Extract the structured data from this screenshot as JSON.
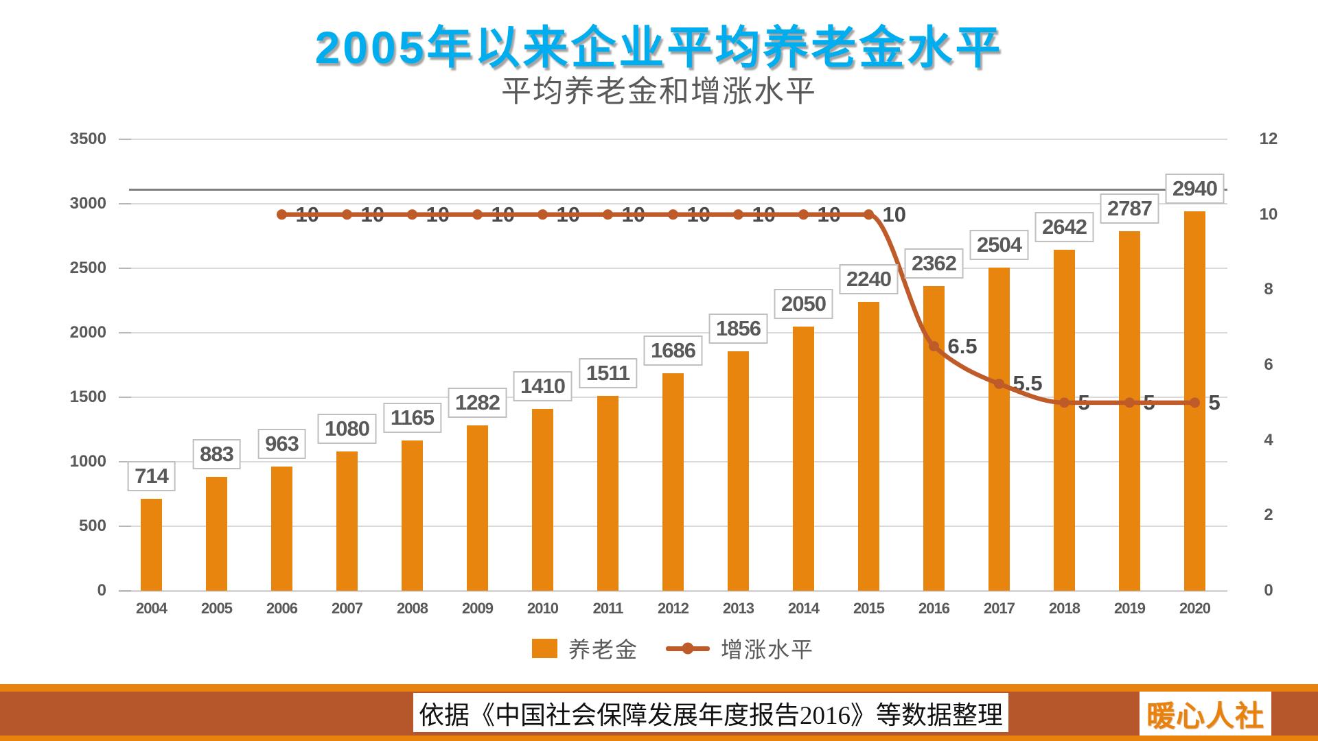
{
  "title": "2005年以来企业平均养老金水平",
  "subtitle": "平均养老金和增涨水平",
  "chart_data": {
    "type": "combo bar+line",
    "categories": [
      "2004",
      "2005",
      "2006",
      "2007",
      "2008",
      "2009",
      "2010",
      "2011",
      "2012",
      "2013",
      "2014",
      "2015",
      "2016",
      "2017",
      "2018",
      "2019",
      "2020"
    ],
    "series": [
      {
        "name": "养老金",
        "type": "bar",
        "axis": "left",
        "color": "#E8850E",
        "values": [
          714,
          883,
          963,
          1080,
          1165,
          1282,
          1410,
          1511,
          1686,
          1856,
          2050,
          2240,
          2362,
          2504,
          2642,
          2787,
          2940
        ],
        "data_labels": [
          "714",
          "883",
          "963",
          "1080",
          "1165",
          "1282",
          "1410",
          "1511",
          "1686",
          "1856",
          "2050",
          "2240",
          "2362",
          "2504",
          "2642",
          "2787",
          "2940"
        ]
      },
      {
        "name": "增涨水平",
        "type": "line",
        "smooth": true,
        "axis": "right",
        "color": "#BF5B28",
        "values": [
          null,
          null,
          10,
          10,
          10,
          10,
          10,
          10,
          10,
          10,
          10,
          10,
          6.5,
          5.5,
          5,
          5,
          5
        ],
        "data_labels": [
          null,
          null,
          "10",
          "10",
          "10",
          "10",
          "10",
          "10",
          "10",
          "10",
          "10",
          "10",
          "6.5",
          "5.5",
          "5",
          "5",
          "5"
        ]
      }
    ],
    "left_axis": {
      "min": 0,
      "max": 3500,
      "step": 500,
      "tick_labels": [
        "0",
        "500",
        "1000",
        "1500",
        "2000",
        "2500",
        "3000",
        "3500"
      ]
    },
    "right_axis": {
      "min": 0,
      "max": 12,
      "step": 2,
      "tick_labels": [
        "0",
        "2",
        "4",
        "6",
        "8",
        "10",
        "12"
      ]
    },
    "grid": "horizontal only",
    "reference_line": {
      "approx_value_left_axis": 3110,
      "color": "#7F7F7F"
    },
    "legend_position": "bottom"
  },
  "legend": {
    "bar_label": "养老金",
    "line_label": "增涨水平"
  },
  "footer": {
    "source_text": "依据《中国社会保障发展年度报告2016》等数据整理",
    "logo_text": "暖心人社"
  },
  "colors": {
    "title": "#00AEEF",
    "bar": "#E8850E",
    "line": "#BF5B28",
    "grid": "#D9D9D9",
    "axis_text": "#595959",
    "data_label_text": "#595959",
    "reference_line": "#7F7F7F",
    "banner_orange": "#E8820C",
    "banner_brown": "#B5572B",
    "logo_text": "#E8820C"
  }
}
